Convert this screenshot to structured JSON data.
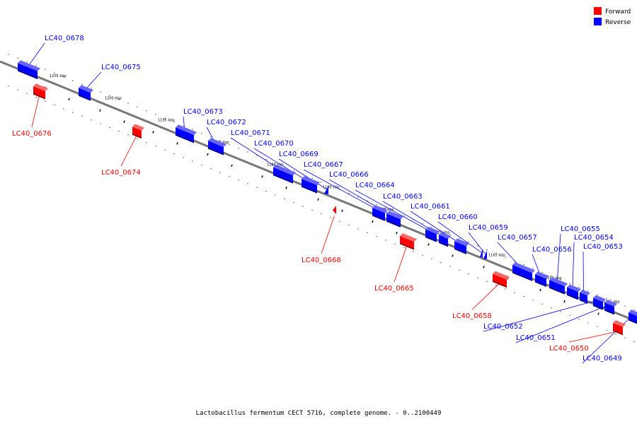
{
  "colors": {
    "forward": "#ff0000",
    "reverse": "#0000ff",
    "axis": "#777777"
  },
  "legend": {
    "forward": "Forward",
    "reverse": "Reverse"
  },
  "caption": "Lactobacillus fermentum CECT 5716, complete genome. - 0..2100449",
  "ticks": [
    "1205 kbp",
    "1200 kbp",
    "1195 kbp",
    "1190 kbp",
    "1185 kbp",
    "1180 kbp",
    "1175 kbp",
    "1170 kbp",
    "1165 kbp",
    "1160 kbp",
    "1155 kbp"
  ],
  "genes": [
    {
      "id": "LC40_0678",
      "strand": "reverse"
    },
    {
      "id": "LC40_0676",
      "strand": "forward"
    },
    {
      "id": "LC40_0675",
      "strand": "reverse"
    },
    {
      "id": "LC40_0674",
      "strand": "forward"
    },
    {
      "id": "LC40_0673",
      "strand": "reverse"
    },
    {
      "id": "LC40_0672",
      "strand": "reverse"
    },
    {
      "id": "LC40_0671",
      "strand": "reverse"
    },
    {
      "id": "LC40_0670",
      "strand": "reverse"
    },
    {
      "id": "LC40_0669",
      "strand": "reverse"
    },
    {
      "id": "LC40_0668",
      "strand": "forward"
    },
    {
      "id": "LC40_0667",
      "strand": "reverse"
    },
    {
      "id": "LC40_0666",
      "strand": "reverse"
    },
    {
      "id": "LC40_0665",
      "strand": "forward"
    },
    {
      "id": "LC40_0664",
      "strand": "reverse"
    },
    {
      "id": "LC40_0663",
      "strand": "reverse"
    },
    {
      "id": "LC40_0661",
      "strand": "reverse"
    },
    {
      "id": "LC40_0660",
      "strand": "reverse"
    },
    {
      "id": "LC40_0659",
      "strand": "reverse"
    },
    {
      "id": "LC40_0658",
      "strand": "forward"
    },
    {
      "id": "LC40_0657",
      "strand": "reverse"
    },
    {
      "id": "LC40_0656",
      "strand": "reverse"
    },
    {
      "id": "LC40_0655",
      "strand": "reverse"
    },
    {
      "id": "LC40_0654",
      "strand": "reverse"
    },
    {
      "id": "LC40_0653",
      "strand": "reverse"
    },
    {
      "id": "LC40_0652",
      "strand": "reverse"
    },
    {
      "id": "LC40_0651",
      "strand": "reverse"
    },
    {
      "id": "LC40_0650",
      "strand": "forward"
    },
    {
      "id": "LC40_0649",
      "strand": "reverse"
    }
  ]
}
